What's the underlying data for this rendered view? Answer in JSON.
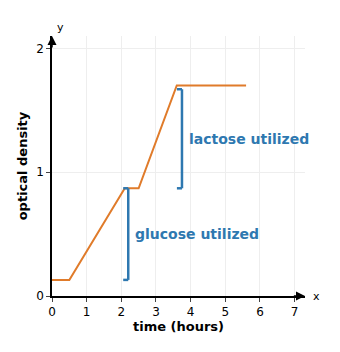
{
  "chart_data": {
    "type": "line",
    "xlabel": "time (hours)",
    "ylabel": "optical density",
    "x_axis_letter": "x",
    "y_axis_letter": "y",
    "x": [
      0,
      0.5,
      2.1,
      2.5,
      3.6,
      5.6
    ],
    "values": [
      0.13,
      0.13,
      0.87,
      0.87,
      1.7,
      1.7
    ],
    "color": "#e07b2a",
    "xlim": [
      0,
      7.3
    ],
    "ylim": [
      0,
      2.1
    ],
    "xticks": [
      0,
      1,
      2,
      3,
      4,
      5,
      6,
      7
    ],
    "yticks": [
      0,
      1,
      2
    ],
    "grid": true,
    "annotations": [
      {
        "text": "glucose utilized",
        "x": 2.2,
        "y0": 0.13,
        "y1": 0.87
      },
      {
        "text": "lactose utilized",
        "x": 3.75,
        "y0": 0.87,
        "y1": 1.67
      }
    ],
    "annotation_color": "#2e78b0"
  }
}
